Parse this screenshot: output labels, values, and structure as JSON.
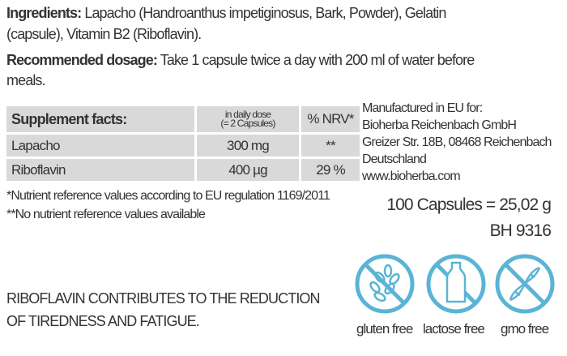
{
  "ingredients": {
    "label": "Ingredients:",
    "line1": "Lapacho (Handroanthus impetiginosus, Bark, Powder), Gelatin",
    "line2": "(capsule), Vitamin B2 (Riboflavin)."
  },
  "dosage": {
    "label": "Recommended dosage:",
    "line1": "Take 1 capsule twice a day with 200 ml of water before",
    "line2": "meals."
  },
  "table": {
    "header": {
      "name": "Supplement facts:",
      "dose_line1": "in daily dose",
      "dose_line2": "(= 2 Capsules)",
      "nrv": "% NRV*"
    },
    "rows": [
      {
        "name": "Lapacho",
        "dose": "300 mg",
        "nrv": "**"
      },
      {
        "name": "Riboflavin",
        "dose": "400 µg",
        "nrv": "29 %"
      }
    ]
  },
  "footnotes": [
    "*Nutrient reference values according to EU regulation 1169/2011",
    "**No nutrient reference values available"
  ],
  "manufacturer": [
    "Manufactured in EU for:",
    "Bioherba Reichenbach GmbH",
    "Greizer Str. 18B, 08468 Reichenbach",
    "Deutschland",
    "www.bioherba.com"
  ],
  "quantity": "100 Capsules = 25,02 g",
  "code": "BH 9316",
  "claim": [
    "RIBOFLAVIN CONTRIBUTES TO THE REDUCTION",
    "OF TIREDNESS AND FATIGUE."
  ],
  "badges": [
    {
      "label": "gluten free",
      "icon": "wheat-icon"
    },
    {
      "label": "lactose free",
      "icon": "bottle-icon"
    },
    {
      "label": "gmo free",
      "icon": "dna-icon"
    }
  ],
  "colors": {
    "badge": "#5ab4d6",
    "table_bg": "#d9d9d9"
  }
}
